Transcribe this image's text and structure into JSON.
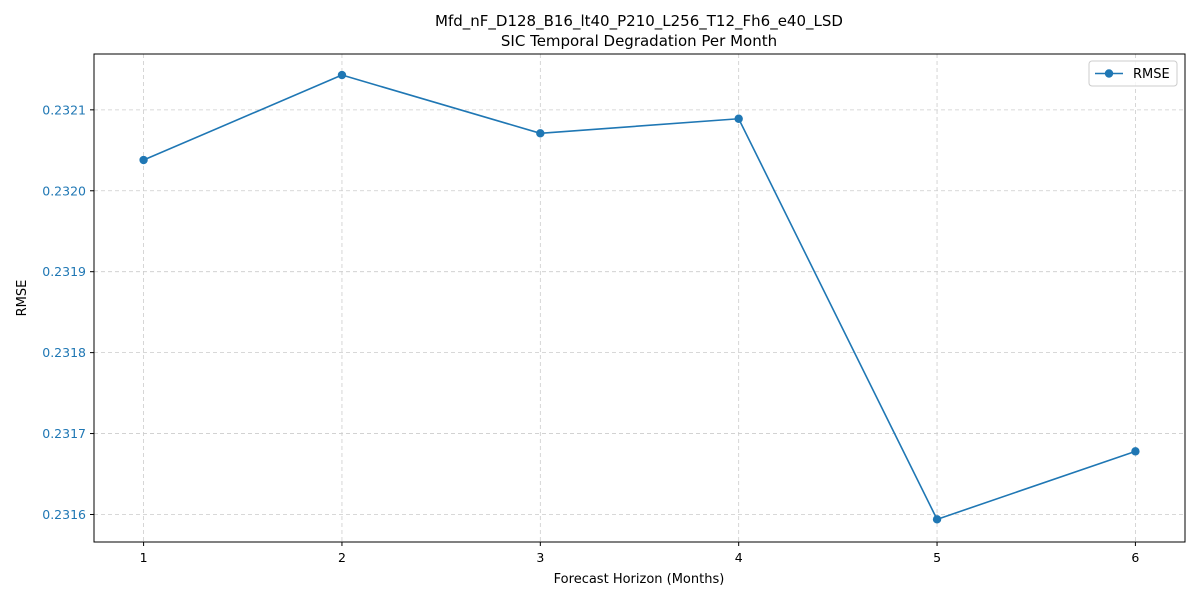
{
  "chart_data": {
    "type": "line",
    "title": "Mfd_nF_D128_B16_lt40_P210_L256_T12_Fh6_e40_LSD",
    "subtitle": "SIC Temporal Degradation Per Month",
    "xlabel": "Forecast Horizon (Months)",
    "ylabel": "RMSE",
    "x": [
      1,
      2,
      3,
      4,
      5,
      6
    ],
    "x_ticks": [
      "1",
      "2",
      "3",
      "4",
      "5",
      "6"
    ],
    "xlim": [
      0.75,
      6.25
    ],
    "ylim": [
      0.231566,
      0.232169
    ],
    "y_ticks": [
      "0.2316",
      "0.2317",
      "0.2318",
      "0.2319",
      "0.2320",
      "0.2321"
    ],
    "y_tick_values": [
      0.2316,
      0.2317,
      0.2318,
      0.2319,
      0.232,
      0.2321
    ],
    "series": [
      {
        "name": "RMSE",
        "values": [
          0.232038,
          0.232143,
          0.232071,
          0.232089,
          0.231594,
          0.231678
        ]
      }
    ],
    "grid": true,
    "legend_position": "top-right",
    "colors": {
      "series": "#1f77b4",
      "y_tick_labels": "#1f77b4",
      "grid": "#cccccc"
    }
  }
}
